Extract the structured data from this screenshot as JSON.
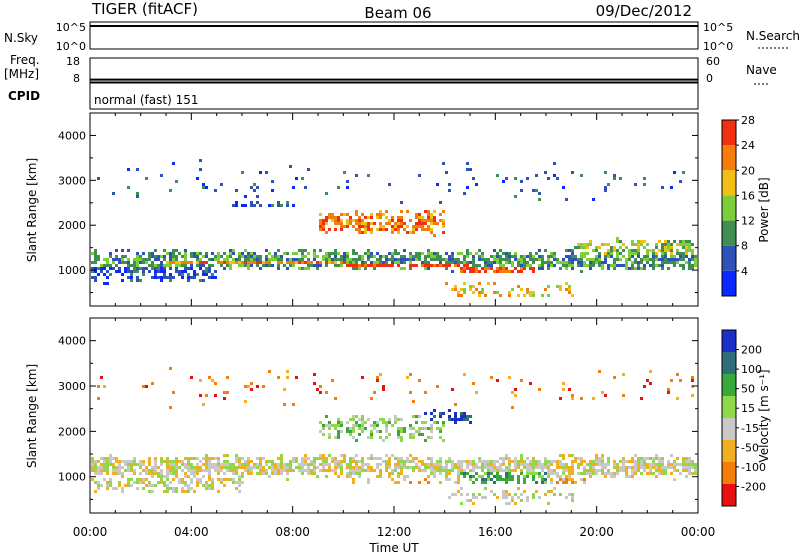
{
  "header": {
    "station": "TIGER (fitACF)",
    "beam": "Beam 06",
    "date": "09/Dec/2012"
  },
  "nsky_panel": {
    "left_label": "N.Sky",
    "right_label": "N.Search",
    "left_ticks": [
      "10^5",
      "10^0"
    ],
    "right_ticks": [
      "10^5",
      "10^0"
    ],
    "value_fraction": 0.85
  },
  "freq_panel": {
    "left_label": "Freq.",
    "left_unit": "[MHz]",
    "right_label": "Nave",
    "left_ticks": [
      "18",
      "8"
    ],
    "right_ticks": [
      "60",
      "0"
    ],
    "value_fraction": 0.1
  },
  "cpid_panel": {
    "label": "CPID",
    "mode_text": "normal (fast) 151"
  },
  "chart_data": [
    {
      "type": "heatmap",
      "title": "",
      "xlabel": "Time UT",
      "ylabel": "Slant Range [km]",
      "x_ticks": [
        "00:00",
        "04:00",
        "08:00",
        "12:00",
        "16:00",
        "20:00",
        "00:00"
      ],
      "y_ticks": [
        "1000",
        "2000",
        "3000",
        "4000"
      ],
      "xlim_hours": [
        0,
        24
      ],
      "ylim": [
        200,
        4500
      ],
      "colorbar_label": "Power [dB]",
      "colorbar_ticks": [
        "4",
        "8",
        "12",
        "16",
        "20",
        "24",
        "28"
      ],
      "colorbar_colors": [
        "#0a28ff",
        "#2f52b8",
        "#3f8f55",
        "#7ccf3a",
        "#f2c014",
        "#f57d0a",
        "#f03010"
      ],
      "bands": [
        {
          "from": 0,
          "to": 24,
          "center": 1250,
          "width": 250,
          "density": 0.75,
          "color_index": 2
        },
        {
          "from": 0,
          "to": 5,
          "center": 1000,
          "width": 300,
          "density": 0.55,
          "color_index": 1
        },
        {
          "from": 3,
          "to": 10,
          "center": 1200,
          "width": 120,
          "density": 0.8,
          "color_index": 5
        },
        {
          "from": 10,
          "to": 15,
          "center": 1150,
          "width": 100,
          "density": 0.85,
          "color_index": 6
        },
        {
          "from": 14.5,
          "to": 17.5,
          "center": 1050,
          "width": 100,
          "density": 0.85,
          "color_index": 6
        },
        {
          "from": 9,
          "to": 14,
          "center": 2100,
          "width": 300,
          "density": 0.6,
          "color_index": 5
        },
        {
          "from": 5.5,
          "to": 8,
          "center": 2500,
          "width": 80,
          "density": 0.5,
          "color_index": 1
        },
        {
          "from": 19,
          "to": 24,
          "center": 1500,
          "width": 250,
          "density": 0.6,
          "color_index": 3
        },
        {
          "from": 14,
          "to": 19,
          "center": 600,
          "width": 200,
          "density": 0.4,
          "color_index": 4
        },
        {
          "from": 0,
          "to": 24,
          "center": 3000,
          "width": 500,
          "density": 0.05,
          "color_index": 1
        }
      ]
    },
    {
      "type": "heatmap",
      "title": "",
      "xlabel": "Time UT",
      "ylabel": "Slant Range [km]",
      "x_ticks": [
        "00:00",
        "04:00",
        "08:00",
        "12:00",
        "16:00",
        "20:00",
        "00:00"
      ],
      "y_ticks": [
        "1000",
        "2000",
        "3000",
        "4000"
      ],
      "xlim_hours": [
        0,
        24
      ],
      "ylim": [
        200,
        4500
      ],
      "colorbar_label": "Velocity [m s⁻¹]",
      "colorbar_ticks": [
        "200",
        "100",
        "50",
        "15",
        "-15",
        "-50",
        "-100",
        "-200"
      ],
      "colorbar_colors": [
        "#1a2fc8",
        "#2f6f7a",
        "#3aa83a",
        "#8fd84a",
        "#c8c8c8",
        "#f2b020",
        "#f57d0a",
        "#e81010"
      ],
      "bands": [
        {
          "from": 0,
          "to": 24,
          "center": 1250,
          "width": 280,
          "density": 0.8,
          "color_index": 4
        },
        {
          "from": 0,
          "to": 6,
          "center": 900,
          "width": 250,
          "density": 0.5,
          "color_index": 4
        },
        {
          "from": 9,
          "to": 14,
          "center": 2100,
          "width": 300,
          "density": 0.45,
          "color_index": 3
        },
        {
          "from": 13,
          "to": 15,
          "center": 2350,
          "width": 150,
          "density": 0.5,
          "color_index": 0
        },
        {
          "from": 14.5,
          "to": 18,
          "center": 1050,
          "width": 180,
          "density": 0.7,
          "color_index": 2
        },
        {
          "from": 10,
          "to": 20,
          "center": 1000,
          "width": 150,
          "density": 0.35,
          "color_index": 5
        },
        {
          "from": 14,
          "to": 19,
          "center": 600,
          "width": 200,
          "density": 0.35,
          "color_index": 4
        },
        {
          "from": 0,
          "to": 24,
          "center": 3000,
          "width": 500,
          "density": 0.04,
          "color_index": 6
        }
      ]
    }
  ]
}
